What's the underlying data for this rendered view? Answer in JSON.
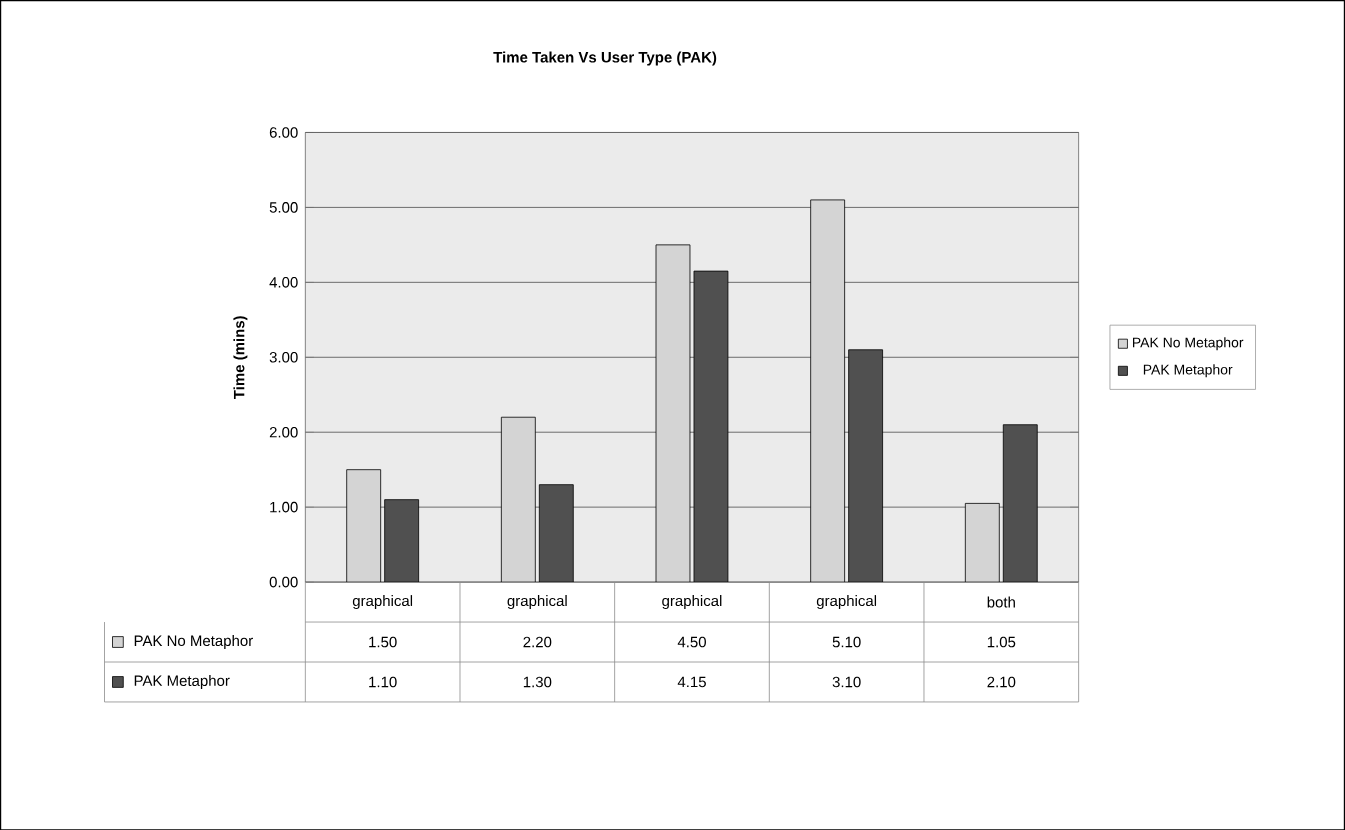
{
  "chart_data": {
    "type": "bar",
    "title": "Time Taken Vs  User Type (PAK)",
    "ylabel": "Time (mins)",
    "categories": [
      "graphical",
      "graphical",
      "graphical",
      "graphical",
      "both"
    ],
    "series": [
      {
        "name": "PAK No Metaphor",
        "color": "#d4d4d4",
        "values": [
          1.5,
          2.2,
          4.5,
          5.1,
          1.05
        ],
        "value_labels": [
          "1.50",
          "2.20",
          "4.50",
          "5.10",
          "1.05"
        ]
      },
      {
        "name": "PAK Metaphor",
        "color": "#505050",
        "values": [
          1.1,
          1.3,
          4.15,
          3.1,
          2.1
        ],
        "value_labels": [
          "1.10",
          "1.30",
          "4.15",
          "3.10",
          "2.10"
        ]
      }
    ],
    "ylim": [
      0,
      6
    ],
    "yticks": [
      {
        "value": 0,
        "label": "0.00"
      },
      {
        "value": 1,
        "label": "1.00"
      },
      {
        "value": 2,
        "label": "2.00"
      },
      {
        "value": 3,
        "label": "3.00"
      },
      {
        "value": 4,
        "label": "4.00"
      },
      {
        "value": 5,
        "label": "5.00"
      },
      {
        "value": 6,
        "label": "6.00"
      }
    ],
    "grid": "y",
    "legend": "right"
  }
}
